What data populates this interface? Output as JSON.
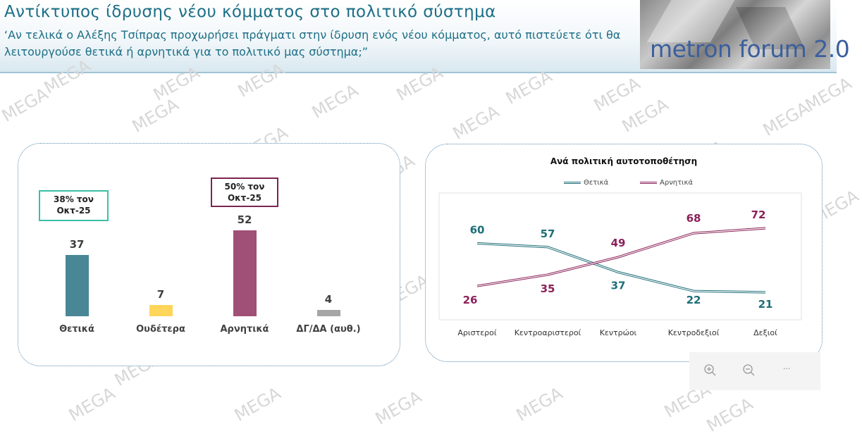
{
  "header": {
    "title": "Αντίκτυπος ίδρυσης νέου κόμματος στο πολιτικό σύστημα",
    "question": "‘Αν τελικά ο Αλέξης Τσίπρας προχωρήσει πράγματι στην ίδρυση ενός νέου κόμματος, αυτό πιστεύετε ότι θα λειτουργούσε θετικά ή αρνητικά για το πολιτικό μας σύστημα;”",
    "logo": "metron forum 2.0"
  },
  "watermark": "MEGA",
  "colors": {
    "title": "#1d6f86",
    "positive": "#4a8796",
    "neutral": "#ffd55a",
    "negative": "#a04f77",
    "dk": "#a6a6a6",
    "line_positive": "#1e6e78",
    "line_negative": "#8b2059"
  },
  "chart_data": [
    {
      "type": "bar",
      "title": "",
      "categories": [
        "Θετικά",
        "Ουδέτερα",
        "Αρνητικά",
        "ΔΓ/ΔΑ (αυθ.)"
      ],
      "values": [
        37,
        7,
        52,
        4
      ],
      "annotations": [
        {
          "category": "Θετικά",
          "text_line1": "38% τον",
          "text_line2": "Οκτ-25"
        },
        {
          "category": "Αρνητικά",
          "text_line1": "50% τον",
          "text_line2": "Οκτ-25"
        }
      ],
      "ylim": [
        0,
        60
      ]
    },
    {
      "type": "line",
      "title": "Ανά πολιτική αυτοτοποθέτηση",
      "categories": [
        "Αριστεροί",
        "Κεντροαριστεροί",
        "Κεντρώοι",
        "Κεντροδεξιοί",
        "Δεξιοί"
      ],
      "series": [
        {
          "name": "Θετικά",
          "values": [
            60,
            57,
            37,
            22,
            21
          ]
        },
        {
          "name": "Αρνητικά",
          "values": [
            26,
            35,
            49,
            68,
            72
          ]
        }
      ],
      "ylim": [
        0,
        80
      ],
      "legend": "top-center",
      "grid": false
    }
  ],
  "zoom": {
    "in_icon": "zoom-in-icon",
    "out_icon": "zoom-out-icon",
    "more": "..."
  }
}
